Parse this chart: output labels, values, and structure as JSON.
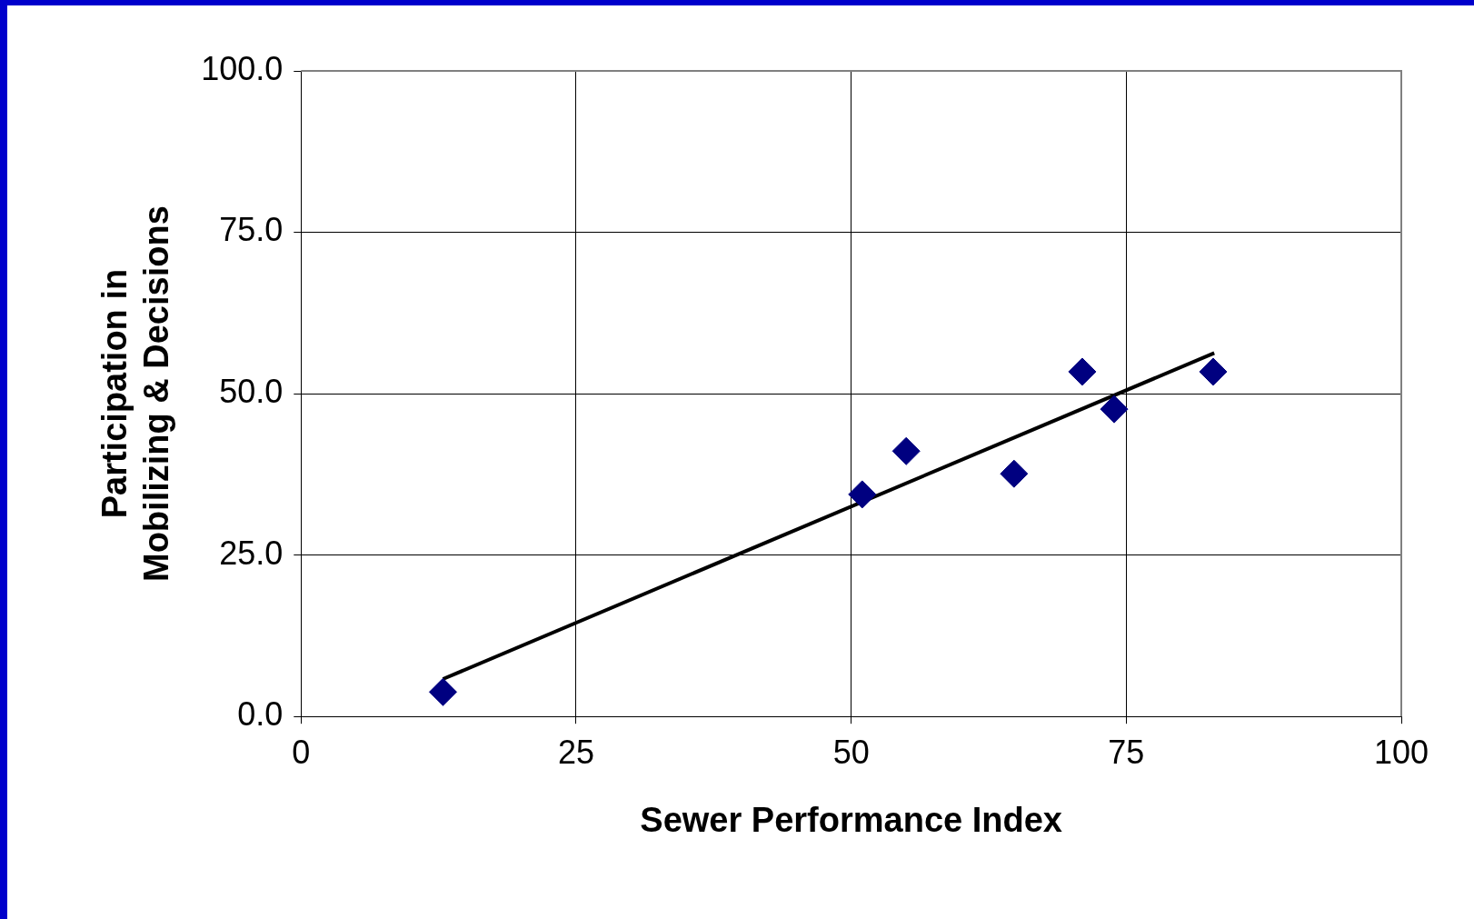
{
  "chart_data": {
    "type": "scatter",
    "xlabel": "Sewer Performance Index",
    "ylabel": "Participation in Mobilizing & Decisions",
    "xlim": [
      0,
      100
    ],
    "xticks": [
      0,
      25,
      50,
      75,
      100
    ],
    "ylim": [
      0,
      100
    ],
    "yticks": [
      {
        "value": 0,
        "label": "0.0"
      },
      {
        "value": 25,
        "label": "25.0"
      },
      {
        "value": 50,
        "label": "50.0"
      },
      {
        "value": 75,
        "label": "75.0"
      },
      {
        "value": 100,
        "label": "100.0"
      }
    ],
    "grid": true,
    "legend": false,
    "marker": "diamond",
    "series": [
      {
        "color": "#000080",
        "x": [
          12.9,
          51.0,
          55.0,
          64.8,
          71.0,
          73.9,
          82.9
        ],
        "values": [
          3.8,
          34.4,
          41.1,
          37.6,
          53.4,
          47.6,
          53.4
        ]
      },
      {
        "type": "line",
        "color": "#000000",
        "marker": "none",
        "x": [
          12.9,
          83.0
        ],
        "values": [
          5.8,
          56.3
        ]
      }
    ]
  }
}
